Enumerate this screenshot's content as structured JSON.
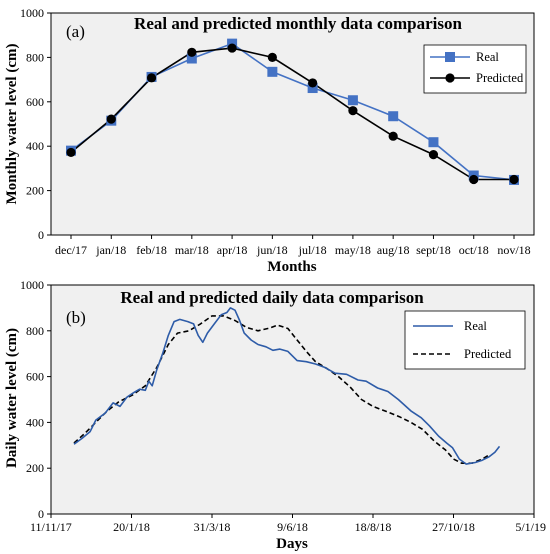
{
  "chart_data": [
    {
      "type": "line",
      "panel_label": "(a)",
      "title": "Real and predicted monthly data comparison",
      "xlabel": "Months",
      "ylabel": "Monthly water level (cm)",
      "ylim": [
        0,
        1000
      ],
      "yticks": [
        0,
        200,
        400,
        600,
        800,
        1000
      ],
      "grid": false,
      "legend_position": "top-right",
      "categories": [
        "dec/17",
        "jan/18",
        "feb/18",
        "mar/18",
        "apr/18",
        "jun/18",
        "jul/18",
        "may/18",
        "aug/18",
        "sept/18",
        "oct/18",
        "nov/18"
      ],
      "series": [
        {
          "name": "Real",
          "color": "#4472C4",
          "marker": "square",
          "values": [
            380,
            515,
            712,
            795,
            862,
            735,
            662,
            607,
            535,
            418,
            268,
            248
          ]
        },
        {
          "name": "Predicted",
          "color": "#000000",
          "marker": "circle",
          "values": [
            372,
            522,
            708,
            823,
            842,
            800,
            685,
            560,
            445,
            362,
            250,
            250
          ]
        }
      ]
    },
    {
      "type": "line",
      "panel_label": "(b)",
      "title": "Real and predicted daily data comparison",
      "xlabel": "Days",
      "ylabel": "Daily water level (cm)",
      "ylim": [
        0,
        1000
      ],
      "yticks": [
        0,
        200,
        400,
        600,
        800,
        1000
      ],
      "xlim": [
        "2017-11-11",
        "2019-01-05"
      ],
      "xticks": [
        "2017-11-11",
        "2018-01-20",
        "2018-03-31",
        "2018-06-09",
        "2018-08-18",
        "2018-10-27",
        "2019-01-05"
      ],
      "xticklabels": [
        "11/11/17",
        "20/1/18",
        "31/3/18",
        "9/6/18",
        "18/8/18",
        "27/10/18",
        "5/1/19"
      ],
      "grid": false,
      "legend_position": "top-right",
      "series": [
        {
          "name": "Real",
          "color": "#2E5CA8",
          "dash": "solid",
          "points": [
            [
              "2017-12-01",
              305
            ],
            [
              "2017-12-08",
              330
            ],
            [
              "2017-12-15",
              360
            ],
            [
              "2017-12-20",
              410
            ],
            [
              "2017-12-28",
              440
            ],
            [
              "2018-01-04",
              485
            ],
            [
              "2018-01-10",
              470
            ],
            [
              "2018-01-16",
              510
            ],
            [
              "2018-01-22",
              530
            ],
            [
              "2018-01-27",
              545
            ],
            [
              "2018-02-01",
              540
            ],
            [
              "2018-02-04",
              580
            ],
            [
              "2018-02-07",
              560
            ],
            [
              "2018-02-11",
              630
            ],
            [
              "2018-02-16",
              700
            ],
            [
              "2018-02-21",
              780
            ],
            [
              "2018-02-26",
              840
            ],
            [
              "2018-03-03",
              850
            ],
            [
              "2018-03-10",
              840
            ],
            [
              "2018-03-15",
              830
            ],
            [
              "2018-03-19",
              780
            ],
            [
              "2018-03-23",
              750
            ],
            [
              "2018-03-27",
              790
            ],
            [
              "2018-04-02",
              830
            ],
            [
              "2018-04-08",
              870
            ],
            [
              "2018-04-13",
              880
            ],
            [
              "2018-04-16",
              900
            ],
            [
              "2018-04-20",
              890
            ],
            [
              "2018-04-24",
              845
            ],
            [
              "2018-04-28",
              790
            ],
            [
              "2018-05-04",
              760
            ],
            [
              "2018-05-10",
              740
            ],
            [
              "2018-05-17",
              730
            ],
            [
              "2018-05-23",
              715
            ],
            [
              "2018-05-29",
              720
            ],
            [
              "2018-06-05",
              710
            ],
            [
              "2018-06-13",
              670
            ],
            [
              "2018-06-21",
              665
            ],
            [
              "2018-06-29",
              655
            ],
            [
              "2018-07-07",
              640
            ],
            [
              "2018-07-16",
              615
            ],
            [
              "2018-07-26",
              610
            ],
            [
              "2018-08-05",
              585
            ],
            [
              "2018-08-12",
              580
            ],
            [
              "2018-08-22",
              550
            ],
            [
              "2018-08-31",
              535
            ],
            [
              "2018-09-09",
              500
            ],
            [
              "2018-09-20",
              450
            ],
            [
              "2018-09-29",
              420
            ],
            [
              "2018-10-06",
              385
            ],
            [
              "2018-10-14",
              340
            ],
            [
              "2018-10-21",
              310
            ],
            [
              "2018-10-26",
              290
            ],
            [
              "2018-11-01",
              240
            ],
            [
              "2018-11-07",
              218
            ],
            [
              "2018-11-15",
              225
            ],
            [
              "2018-11-21",
              235
            ],
            [
              "2018-11-27",
              250
            ],
            [
              "2018-12-02",
              270
            ],
            [
              "2018-12-06",
              295
            ]
          ]
        },
        {
          "name": "Predicted",
          "color": "#000000",
          "dash": "dashed",
          "points": [
            [
              "2017-12-01",
              310
            ],
            [
              "2017-12-10",
              350
            ],
            [
              "2017-12-20",
              400
            ],
            [
              "2017-12-30",
              450
            ],
            [
              "2018-01-09",
              490
            ],
            [
              "2018-01-21",
              520
            ],
            [
              "2018-02-01",
              560
            ],
            [
              "2018-02-11",
              640
            ],
            [
              "2018-02-21",
              740
            ],
            [
              "2018-03-01",
              790
            ],
            [
              "2018-03-11",
              800
            ],
            [
              "2018-03-21",
              830
            ],
            [
              "2018-03-31",
              865
            ],
            [
              "2018-04-10",
              865
            ],
            [
              "2018-04-20",
              845
            ],
            [
              "2018-04-30",
              815
            ],
            [
              "2018-05-10",
              800
            ],
            [
              "2018-05-20",
              812
            ],
            [
              "2018-05-27",
              825
            ],
            [
              "2018-06-05",
              810
            ],
            [
              "2018-06-13",
              760
            ],
            [
              "2018-06-21",
              710
            ],
            [
              "2018-06-29",
              665
            ],
            [
              "2018-07-09",
              635
            ],
            [
              "2018-07-19",
              600
            ],
            [
              "2018-07-29",
              555
            ],
            [
              "2018-08-08",
              500
            ],
            [
              "2018-08-18",
              470
            ],
            [
              "2018-08-31",
              445
            ],
            [
              "2018-09-10",
              425
            ],
            [
              "2018-09-20",
              400
            ],
            [
              "2018-09-30",
              370
            ],
            [
              "2018-10-10",
              320
            ],
            [
              "2018-10-20",
              280
            ],
            [
              "2018-10-27",
              240
            ],
            [
              "2018-11-03",
              222
            ],
            [
              "2018-11-12",
              222
            ],
            [
              "2018-11-21",
              240
            ],
            [
              "2018-11-27",
              258
            ]
          ]
        }
      ]
    }
  ]
}
